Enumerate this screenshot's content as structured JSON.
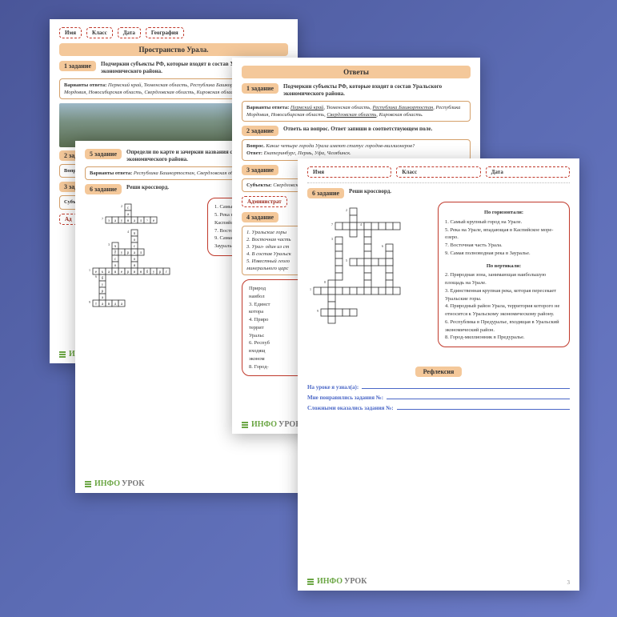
{
  "brand": "ИНФОУРОК",
  "colors": {
    "accent_fill": "#f4c89a",
    "accent_border": "#d4a06a",
    "danger": "#c0392b",
    "link": "#4a67c7",
    "logo_green": "#6ba644",
    "logo_grey": "#7a7a7a",
    "bg_grad_start": "#4a5699",
    "bg_grad_end": "#6c7bc7"
  },
  "header_fields": {
    "name": "Имя",
    "class": "Класс",
    "date": "Дата",
    "subject": "География"
  },
  "pages": {
    "p1": {
      "title": "Пространство Урала.",
      "task1": {
        "badge": "1 задание",
        "text": "Подчеркни субъекты РФ, которые входят в состав Уральского экономического района."
      },
      "options1": {
        "label": "Варианты ответа:",
        "text": "Пермский край, Тюменская область, Республика Башкортостан, Республика Мордовия, Новосибирская область, Свердловская область, Кировская область."
      },
      "task2": {
        "badge": "2 задание"
      },
      "q2_prefix": "Вопрос.",
      "task3": {
        "badge": "3 задание"
      },
      "subj_label": "Субъекты:",
      "subj_frag": "Республика",
      "admin_frag": "Ад"
    },
    "p2": {
      "task5": {
        "badge": "5 задание",
        "text": "Определи по карте и зачеркни названия субъекта Уральского экономического района."
      },
      "options5": {
        "label": "Варианты ответа:",
        "text": "Республика Башкортостан, Свердловская область, Челябинская область."
      },
      "task6": {
        "badge": "6 задание",
        "text": "Реши кроссворд."
      },
      "clue_frags": [
        "1. Самый",
        "5. Река на",
        "Каспийск",
        "7. Восточ",
        "9. Самая",
        "Зауралье"
      ],
      "crossword": {
        "cell": 8,
        "letters": {
          "s_a": "с",
          "a_n": "а",
          "n_": "н",
          "u_": "у",
          "r_": "р",
          "a_2": "а",
          "l_": "л",
          "gt": ">",
          "e_": "е",
          "p_": "п",
          "o_": "о",
          "s_": "с",
          "t_": "т",
          "e2": "е",
          "k_": "к",
          "a3": "а",
          "t2": "т",
          "e3": "е",
          "r2": "р",
          "i_": "и",
          "n2": "н",
          "b_": "б",
          "u2": "у",
          "r3": "р",
          "a4": "а",
          "l2": "л",
          "f_": "ф",
          "t3": "т",
          "a5": "а",
          "v_": "в",
          "d_": "д",
          "a6": "а"
        }
      }
    },
    "p3": {
      "title": "Ответы",
      "task1": {
        "badge": "1 задание",
        "text": "Подчеркни субъекты РФ, которые входят в состав Уральского экономического района."
      },
      "options1": {
        "label": "Варианты ответа:",
        "text_html": "<u>Пермский край</u>, Тюменская область, <u>Республика Башкортостан</u>, Республика Мордовия, Новосибирская область, <u>Свердловская область</u>, Кировская область."
      },
      "task2": {
        "badge": "2 задание",
        "text": "Ответь на вопрос. Ответ запиши в соответствующем поле."
      },
      "q2": {
        "label": "Вопрос.",
        "q": "Какие четыре города Урала имеют статус городов-миллионеров?",
        "a_label": "Ответ:",
        "a": "Екатеринбург, Пермь, Уфа, Челябинск."
      },
      "task3": {
        "badge": "3 задание"
      },
      "subj3": {
        "label": "Субъекты:",
        "text": "Свердловская, Республика_1_, Пер"
      },
      "admin": "Администрат",
      "task4": {
        "badge": "4 задание"
      },
      "list4": [
        "1. Уральские горы",
        "2. Восточная часть",
        "3. Урал- один из ст",
        "4. В состав Уральск",
        "5. Известный геоло",
        "минерального царс"
      ],
      "clue_frags": [
        "Природ",
        "наибол",
        "3. Единст",
        "котора",
        "4. Приро",
        "террит",
        "Уральс",
        "6. Респуб",
        "входящ",
        "эконом",
        "8. Город-"
      ]
    },
    "p4": {
      "page_num": "3",
      "task6": {
        "badge": "6 задание",
        "text": "Реши кроссворд."
      },
      "clues": {
        "h_title": "По горизонтали:",
        "h": [
          "1. Самый крупный город на Урале.",
          "5. Река на Урале, впадающая в Каспийское море-озеро.",
          "7. Восточная часть Урала.",
          "9. Самая полноводная река в Зауралье."
        ],
        "v_title": "По вертикали:",
        "v": [
          "2. Природная зона, занимающая наибольшую площадь на Урале.",
          "3. Единственная крупная река, которая пересекает Уральские горы.",
          "4. Природный район Урала, территория которого не относится к Уральскому экономическому району.",
          "6. Республика в Предуралье, входящая в Уральский экономический район.",
          "8. Город-миллионник в Предуралье."
        ]
      },
      "reflection": {
        "title": "Рефлексия",
        "lines": [
          "На уроке я узнал(а):",
          "Мне понравились задания №:",
          "Сложными оказались задания №:"
        ]
      },
      "crossword": {
        "cell": 9
      }
    }
  }
}
